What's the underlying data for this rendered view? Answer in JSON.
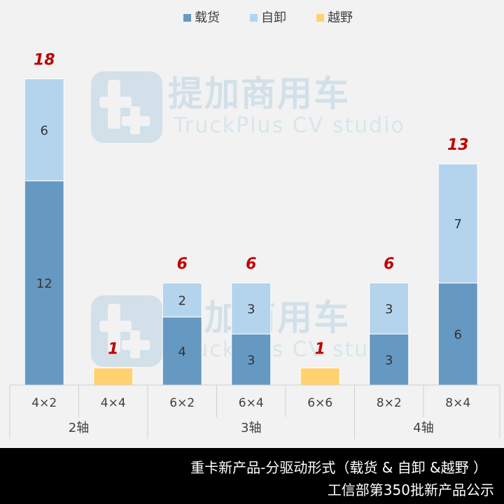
{
  "chart_data": {
    "type": "bar",
    "stacked": true,
    "legend_position": "top",
    "categories": [
      "4×2",
      "4×4",
      "6×2",
      "6×4",
      "6×6",
      "8×2",
      "8×4"
    ],
    "groups": [
      {
        "label": "2轴",
        "categories": [
          "4×2",
          "4×4"
        ]
      },
      {
        "label": "3轴",
        "categories": [
          "6×2",
          "6×4",
          "6×6"
        ]
      },
      {
        "label": "4轴",
        "categories": [
          "8×2",
          "8×4"
        ]
      }
    ],
    "series": [
      {
        "name": "载货",
        "color": "#6699c2",
        "values": [
          12,
          0,
          4,
          3,
          0,
          3,
          6
        ]
      },
      {
        "name": "自卸",
        "color": "#b4d4ee",
        "values": [
          6,
          0,
          2,
          3,
          0,
          3,
          7
        ]
      },
      {
        "name": "越野",
        "color": "#ffd26f",
        "values": [
          0,
          1,
          0,
          0,
          1,
          0,
          0
        ]
      }
    ],
    "totals": [
      18,
      1,
      6,
      6,
      1,
      6,
      13
    ],
    "total_label_color": "#c00000",
    "ylim": [
      0,
      18
    ],
    "grid": false
  },
  "watermark": {
    "title": "提加商用车",
    "subtitle": "TruckPlus CV studio",
    "color": "#8fb8d4"
  },
  "footer": {
    "line1": "重卡新产品-分驱动形式（载货 & 自卸 &越野 ）",
    "line2": "工信部第350批新产品公示"
  }
}
